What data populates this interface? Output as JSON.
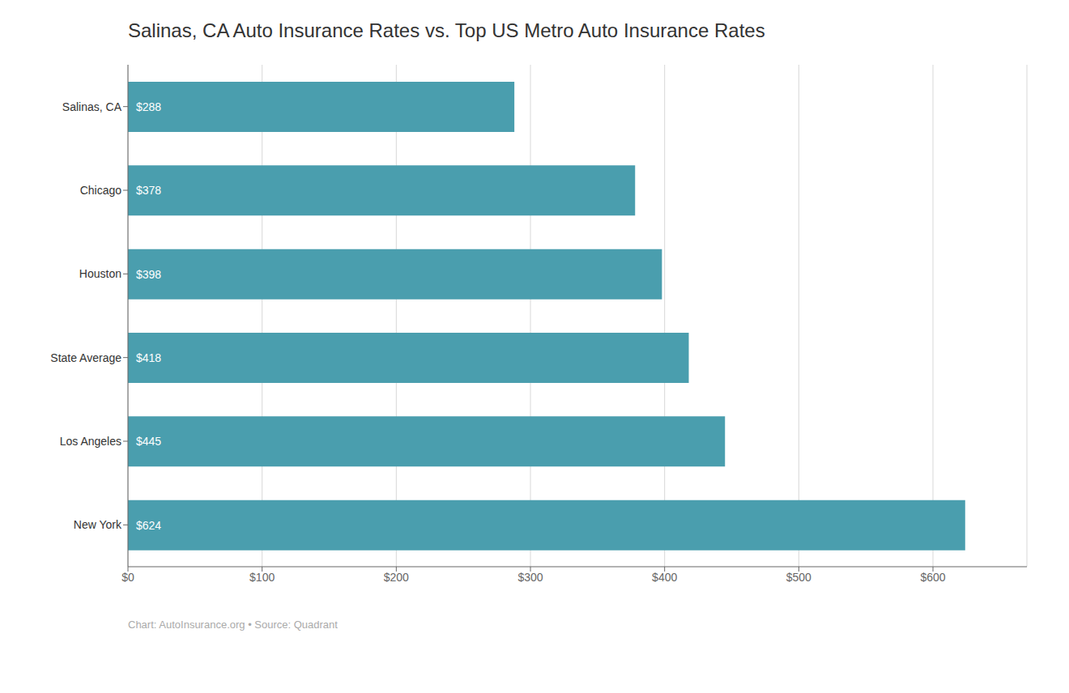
{
  "chart_data": {
    "type": "bar",
    "orientation": "horizontal",
    "title": "Salinas, CA Auto Insurance Rates vs. Top US Metro Auto Insurance Rates",
    "categories": [
      "New York",
      "Los Angeles",
      "State Average",
      "Houston",
      "Chicago",
      "Salinas, CA"
    ],
    "values": [
      624,
      445,
      418,
      398,
      378,
      288
    ],
    "value_labels": [
      "$624",
      "$445",
      "$418",
      "$398",
      "$378",
      "$288"
    ],
    "color": "#4a9eae",
    "xlim": [
      0,
      670
    ],
    "xticks": [
      {
        "value": 0,
        "label": "$0"
      },
      {
        "value": 100,
        "label": "$100"
      },
      {
        "value": 200,
        "label": "$200"
      },
      {
        "value": 300,
        "label": "$300"
      },
      {
        "value": 400,
        "label": "$400"
      },
      {
        "value": 500,
        "label": "$500"
      },
      {
        "value": 600,
        "label": "$600"
      }
    ],
    "grid": true,
    "data_labels": true,
    "annotations": [
      "Chart: AutoInsurance.org • Source: Quadrant"
    ]
  }
}
